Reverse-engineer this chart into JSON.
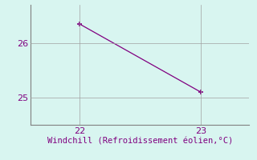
{
  "x": [
    22,
    23
  ],
  "y": [
    26.35,
    25.1
  ],
  "line_color": "#800080",
  "marker": "+",
  "marker_size": 5,
  "marker_linewidth": 1.2,
  "background_color": "#d8f5f0",
  "grid_color": "#a0a0a0",
  "xlabel": "Windchill (Refroidissement éolien,°C)",
  "xlabel_fontsize": 7.5,
  "xlabel_color": "#800080",
  "tick_color": "#800080",
  "tick_fontsize": 8,
  "xlim": [
    21.6,
    23.4
  ],
  "ylim": [
    24.5,
    26.7
  ],
  "xticks": [
    22,
    23
  ],
  "yticks": [
    25,
    26
  ],
  "spine_color": "#808080",
  "line_width": 0.9,
  "figsize": [
    3.2,
    2.0
  ],
  "dpi": 100
}
